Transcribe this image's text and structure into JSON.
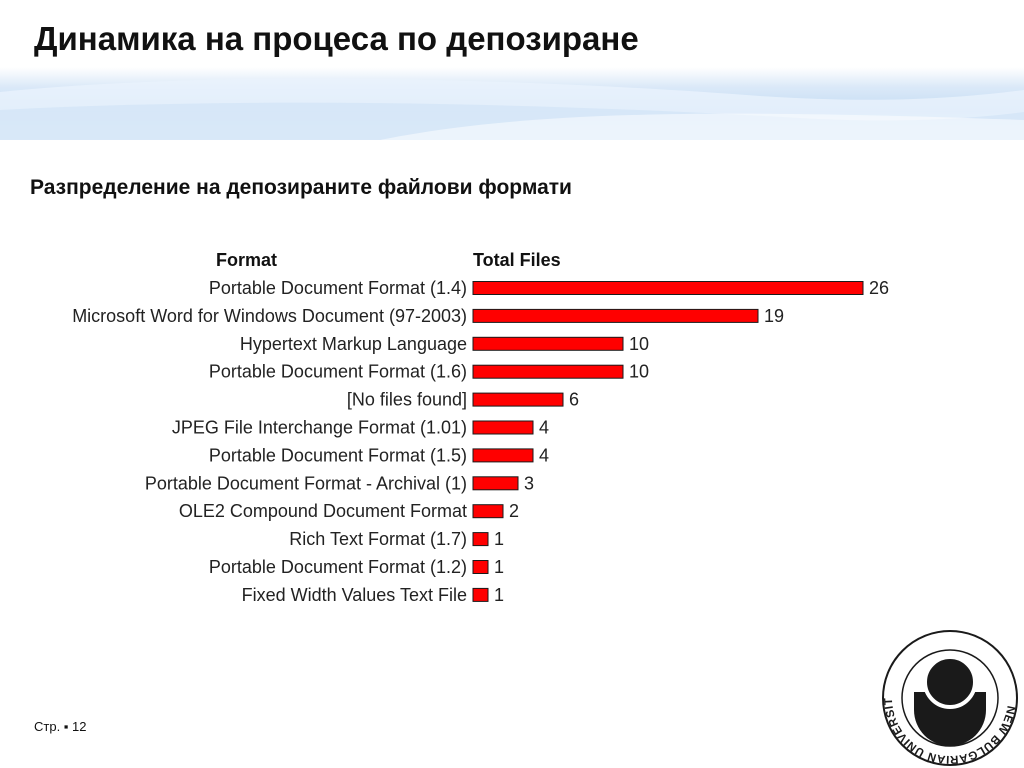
{
  "slide": {
    "title": "Динамика на процеса по депозиране",
    "subtitle": "Разпределение на депозираните файлови формати",
    "footer": "Стр. ▪ 12",
    "accent_color": "#c4dcf4"
  },
  "logo": {
    "ring_text": "NEW BULGARIAN UNIVERSITY • НОВ БЪЛГАРСКИ УНИВЕРСИТЕТ •",
    "color": "#1a1a1a"
  },
  "chart_data": {
    "type": "bar",
    "orientation": "horizontal",
    "header_category": "Format",
    "header_value": "Total Files",
    "categories": [
      "Portable Document Format (1.4)",
      "Microsoft Word for Windows Document (97-2003)",
      "Hypertext Markup Language",
      "Portable Document Format (1.6)",
      "[No files found]",
      "JPEG File Interchange Format (1.01)",
      "Portable Document Format (1.5)",
      "Portable Document Format - Archival (1)",
      "OLE2 Compound Document Format",
      "Rich Text Format (1.7)",
      "Portable Document Format (1.2)",
      "Fixed Width Values Text File"
    ],
    "values": [
      26,
      19,
      10,
      10,
      6,
      4,
      4,
      3,
      2,
      1,
      1,
      1
    ],
    "bar_color": "#ff0000",
    "bar_outline": "#1a1a1a"
  }
}
